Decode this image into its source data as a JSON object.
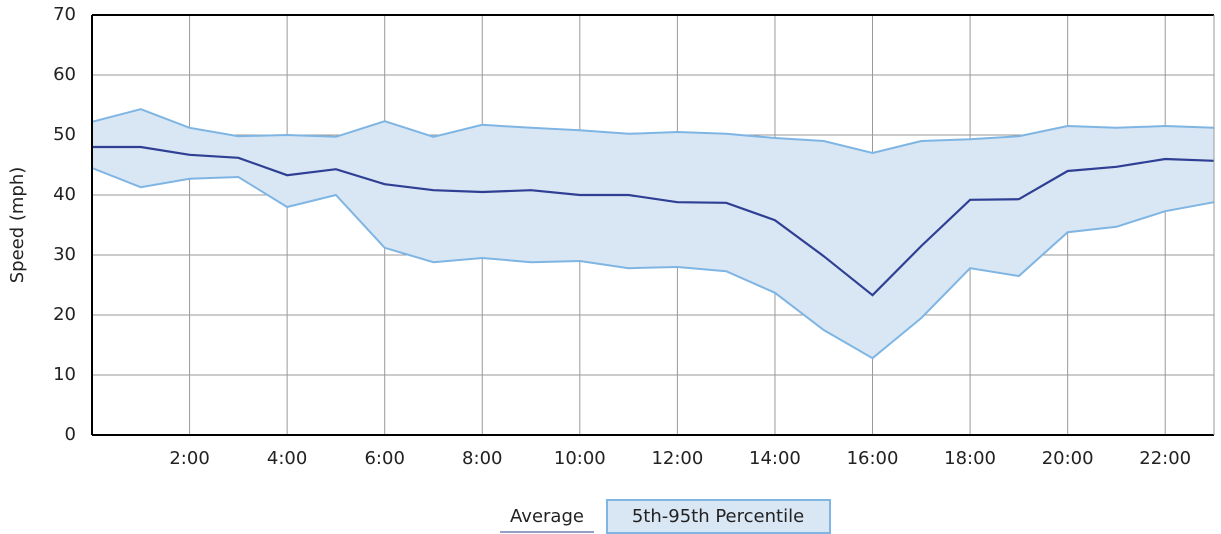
{
  "chart_data": {
    "type": "line",
    "y_label": "Speed (mph)",
    "categories": [
      null,
      null,
      "2:00",
      null,
      "4:00",
      null,
      "6:00",
      null,
      "8:00",
      null,
      "10:00",
      null,
      "12:00",
      null,
      "14:00",
      null,
      "16:00",
      null,
      "18:00",
      null,
      "20:00",
      null,
      "22:00",
      null
    ],
    "series": [
      {
        "name": "Average",
        "color": "#2f3f93",
        "values": [
          48,
          48,
          46.7,
          46.2,
          43.3,
          44.3,
          41.8,
          40.8,
          40.5,
          40.8,
          40,
          40,
          38.8,
          38.7,
          35.8,
          29.8,
          23.3,
          31.5,
          39.2,
          39.3,
          44,
          44.7,
          46,
          45.7
        ]
      }
    ],
    "band": {
      "name": "5th-95th Percentile",
      "color": "#7fb5e3",
      "fill": "#d9e7f5",
      "upper": [
        52.2,
        54.3,
        51.2,
        49.8,
        50,
        49.7,
        52.3,
        49.7,
        51.7,
        51.2,
        50.8,
        50.2,
        50.5,
        50.2,
        49.5,
        49,
        47,
        49,
        49.3,
        49.8,
        51.5,
        51.2,
        51.5,
        51.2
      ],
      "lower": [
        44.5,
        41.3,
        42.7,
        43,
        38,
        40,
        31.2,
        28.8,
        29.5,
        28.8,
        29,
        27.8,
        28,
        27.3,
        23.7,
        17.5,
        12.8,
        19.5,
        27.8,
        26.5,
        33.8,
        34.7,
        37.3,
        38.8
      ]
    },
    "ylim": [
      0,
      70
    ],
    "yticks": [
      0,
      10,
      20,
      30,
      40,
      50,
      60,
      70
    ],
    "grid": true
  }
}
